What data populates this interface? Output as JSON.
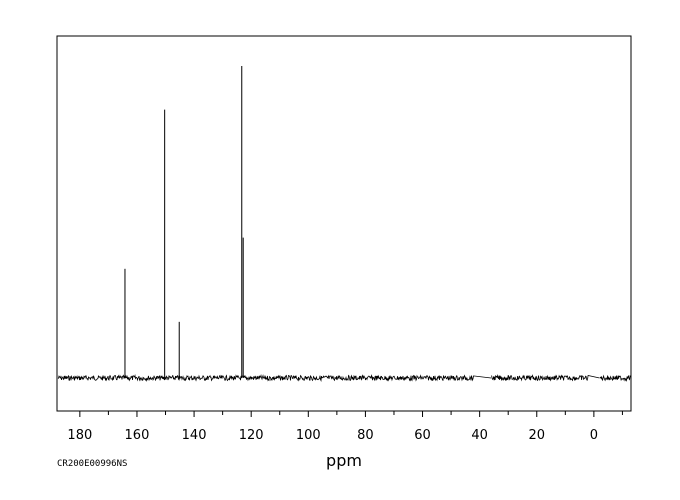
{
  "chart_data": {
    "type": "line",
    "xlabel": "ppm",
    "ylabel": "",
    "title": "",
    "xlim": [
      188,
      -13
    ],
    "ylim": [
      -0.1,
      1.1
    ],
    "x_ticks": [
      180,
      160,
      140,
      120,
      100,
      80,
      60,
      40,
      20,
      0
    ],
    "x_ticks_reversed": true,
    "grid": false,
    "spectrum_code": "CR200E00996NS",
    "baseline_gaps": [
      [
        42,
        36
      ],
      [
        2,
        -2
      ]
    ],
    "peaks": [
      {
        "ppm": 164.2,
        "intensity": 0.35
      },
      {
        "ppm": 150.3,
        "intensity": 0.86
      },
      {
        "ppm": 145.2,
        "intensity": 0.18
      },
      {
        "ppm": 123.3,
        "intensity": 1.0
      },
      {
        "ppm": 122.8,
        "intensity": 0.45
      }
    ]
  }
}
